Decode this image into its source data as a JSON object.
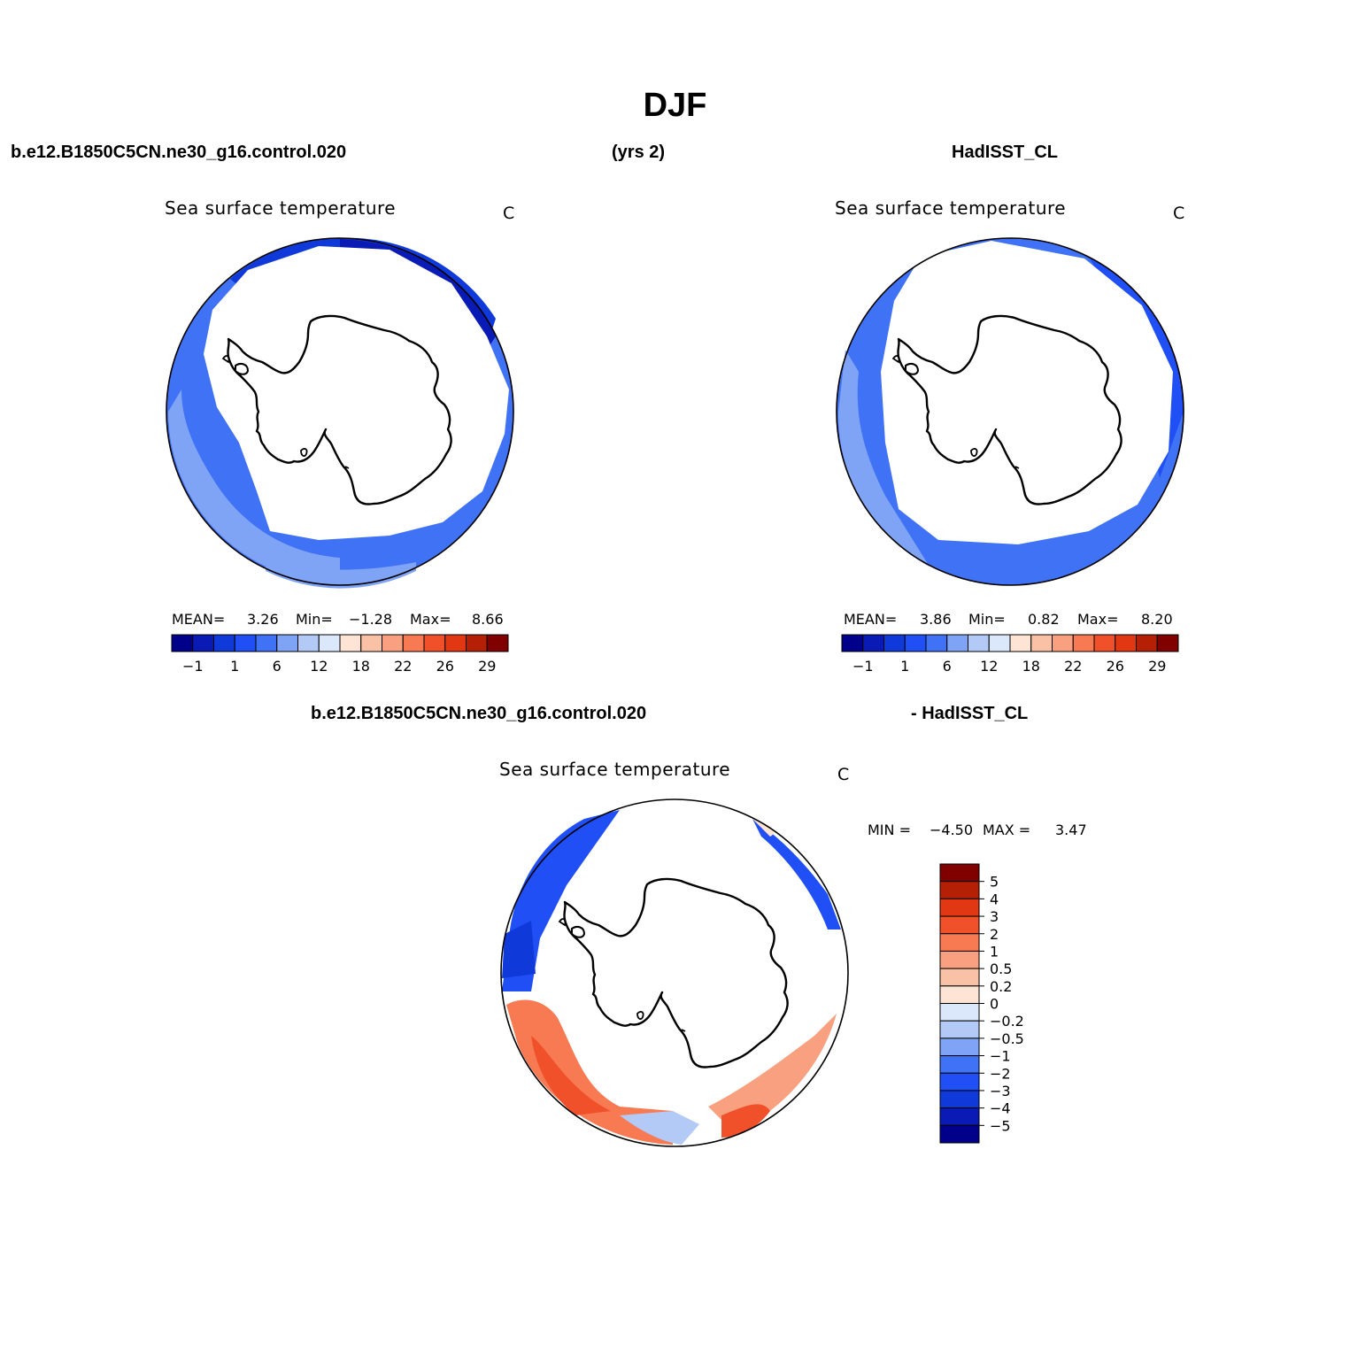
{
  "title": "DJF",
  "top_headers": {
    "left": "b.e12.B1850C5CN.ne30_g16.control.020",
    "center": "(yrs 2)",
    "right": "HadISST_CL"
  },
  "bottom_headers": {
    "left": "b.e12.B1850C5CN.ne30_g16.control.020",
    "right": "- HadISST_CL"
  },
  "panels": [
    {
      "id": "model",
      "title": "Sea surface temperature",
      "units": "C",
      "stats": {
        "mean_label": "MEAN=",
        "mean": "3.26",
        "min_label": "Min=",
        "min": "−1.28",
        "max_label": "Max=",
        "max": "8.66"
      }
    },
    {
      "id": "obs",
      "title": "Sea surface temperature",
      "units": "C",
      "stats": {
        "mean_label": "MEAN=",
        "mean": "3.86",
        "min_label": "Min=",
        "min": "0.82",
        "max_label": "Max=",
        "max": "8.20"
      }
    },
    {
      "id": "diff",
      "title": "Sea surface temperature",
      "units": "C",
      "stats": {
        "min_label": "MIN =",
        "min": "−4.50",
        "max_label": "MAX =",
        "max": "3.47"
      }
    }
  ],
  "colorbars": {
    "absolute": {
      "colors": [
        "#00008b",
        "#0a1ab4",
        "#0f3ad9",
        "#1f4ff5",
        "#3f72f5",
        "#7fa3f5",
        "#b3c9f6",
        "#dbe7fb",
        "#fde4d4",
        "#f9c2a6",
        "#f8a07f",
        "#f87a52",
        "#f0502a",
        "#e13712",
        "#b41f05",
        "#800000"
      ],
      "tick_labels": [
        "−1",
        "1",
        "6",
        "12",
        "18",
        "22",
        "26",
        "29"
      ]
    },
    "difference": {
      "colors": [
        "#800000",
        "#b41f05",
        "#e13712",
        "#f0502a",
        "#f87a52",
        "#f8a07f",
        "#f9c2a6",
        "#fde4d4",
        "#dbe7fb",
        "#b3c9f6",
        "#7fa3f5",
        "#3f72f5",
        "#1f4ff5",
        "#0f3ad9",
        "#0a1ab4",
        "#00008b"
      ],
      "tick_labels": [
        "5",
        "4",
        "3",
        "2",
        "1",
        "0.5",
        "0.2",
        "0",
        "−0.2",
        "−0.5",
        "−1",
        "−2",
        "−3",
        "−4",
        "−5"
      ]
    }
  },
  "map_colors": {
    "land": "#ffffff",
    "coast": "#000000"
  }
}
